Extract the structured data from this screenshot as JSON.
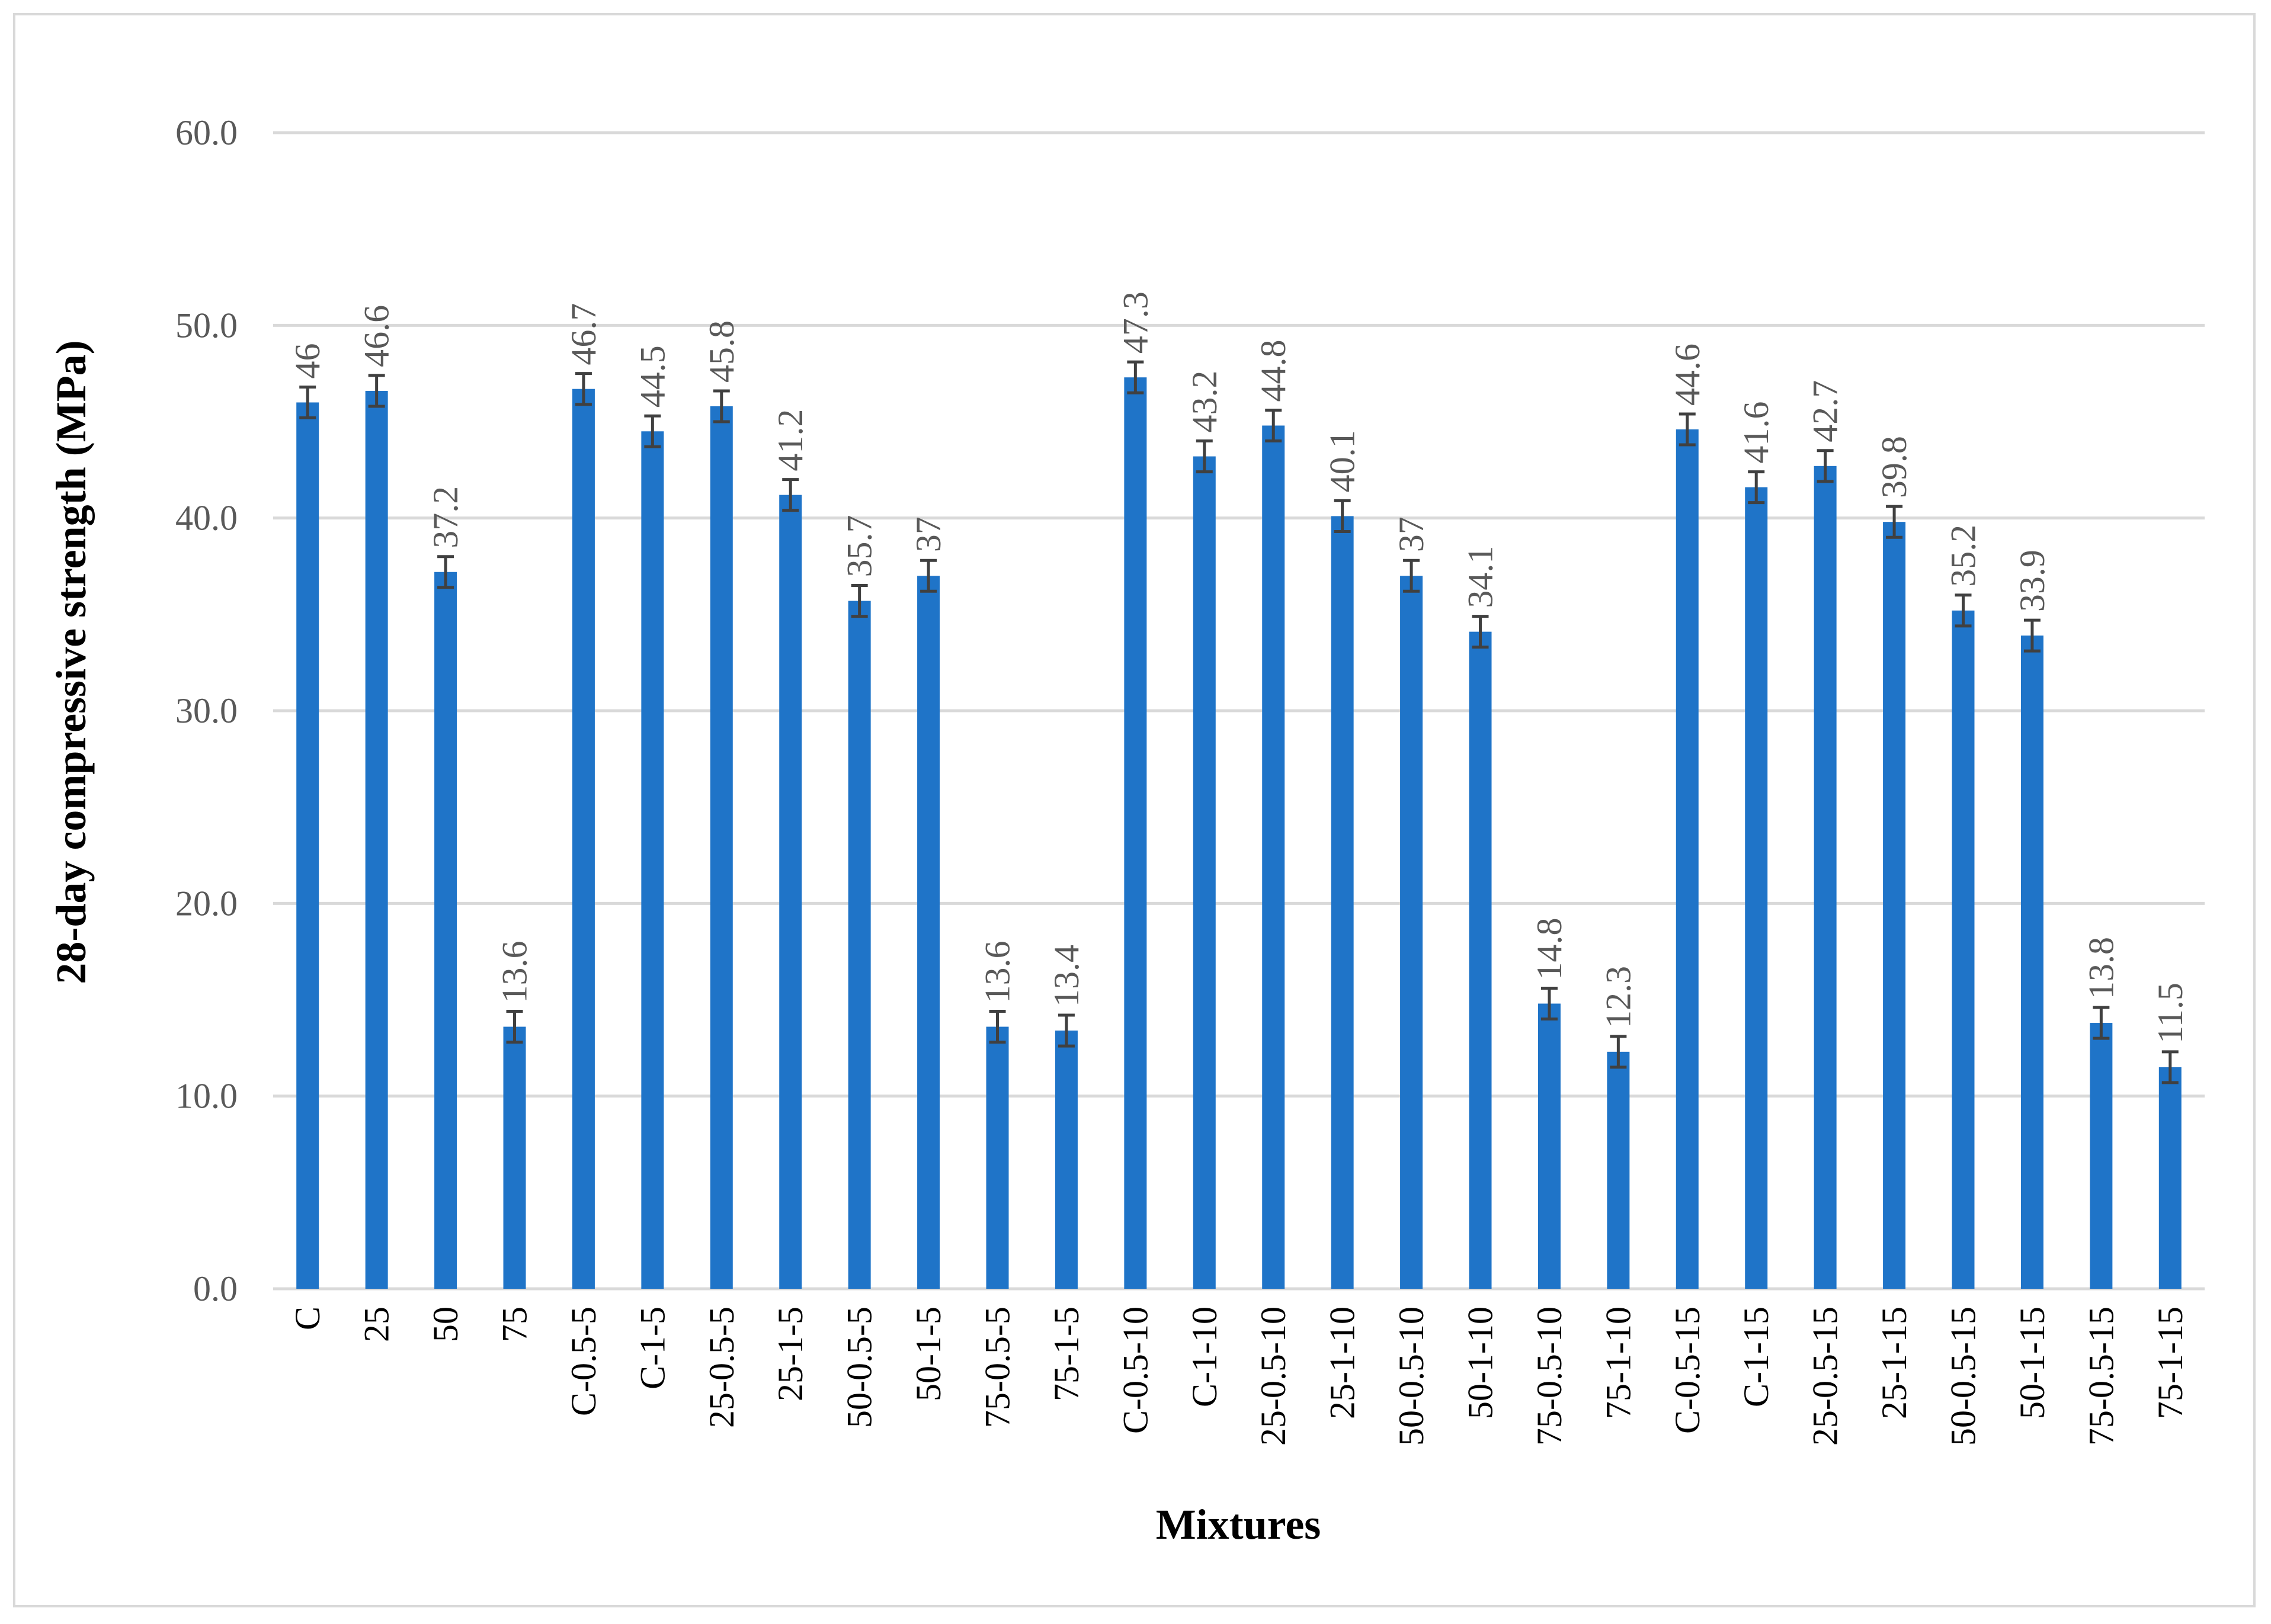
{
  "chart_data": {
    "type": "bar",
    "xlabel": "Mixtures",
    "ylabel": "28-day compressive strength (MPa)",
    "ylim": [
      0,
      60
    ],
    "yticks": [
      "0.0",
      "10.0",
      "20.0",
      "30.0",
      "40.0",
      "50.0",
      "60.0"
    ],
    "grid": true,
    "legend": "none",
    "bar_color": "#1f74c8",
    "error_bar_color": "#404040",
    "error": 0.8,
    "categories": [
      "C",
      "25",
      "50",
      "75",
      "C-0.5-5",
      "C-1-5",
      "25-0.5-5",
      "25-1-5",
      "50-0.5-5",
      "50-1-5",
      "75-0.5-5",
      "75-1-5",
      "C-0.5-10",
      "C-1-10",
      "25-0.5-10",
      "25-1-10",
      "50-0.5-10",
      "50-1-10",
      "75-0.5-10",
      "75-1-10",
      "C-0.5-15",
      "C-1-15",
      "25-0.5-15",
      "25-1-15",
      "50-0.5-15",
      "50-1-15",
      "75-0.5-15",
      "75-1-15"
    ],
    "values": [
      46,
      46.6,
      37.2,
      13.6,
      46.7,
      44.5,
      45.8,
      41.2,
      35.7,
      37,
      13.6,
      13.4,
      47.3,
      43.2,
      44.8,
      40.1,
      37,
      34.1,
      14.8,
      12.3,
      44.6,
      41.6,
      42.7,
      39.8,
      35.2,
      33.9,
      13.8,
      11.5
    ],
    "data_labels": [
      "46",
      "46.6",
      "37.2",
      "13.6",
      "46.7",
      "44.5",
      "45.8",
      "41.2",
      "35.7",
      "37",
      "13.6",
      "13.4",
      "47.3",
      "43.2",
      "44.8",
      "40.1",
      "37",
      "34.1",
      "14.8",
      "12.3",
      "44.6",
      "41.6",
      "42.7",
      "39.8",
      "35.2",
      "33.9",
      "13.8",
      "11.5"
    ]
  }
}
